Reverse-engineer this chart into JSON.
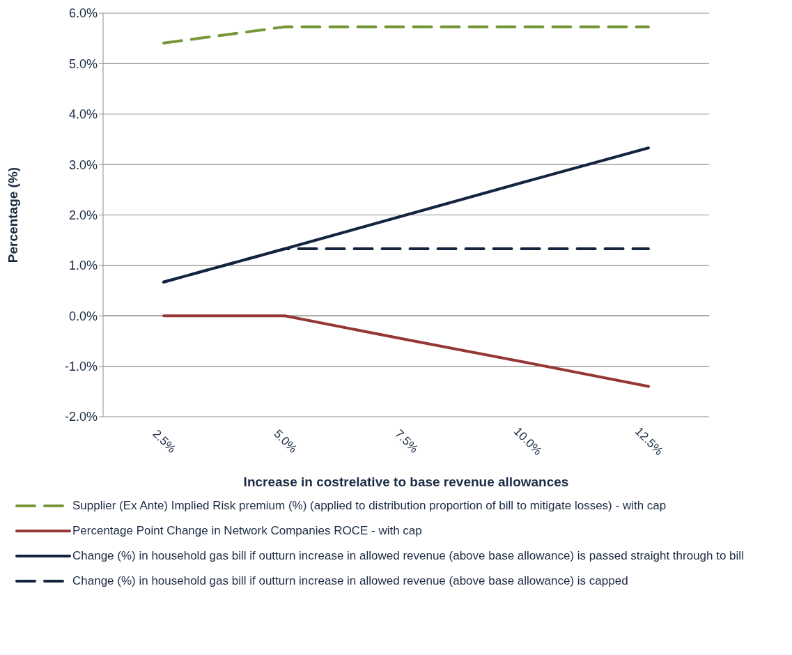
{
  "chart_data": {
    "type": "line",
    "xlabel": "Increase in costrelative to base revenue allowances",
    "ylabel": "Percentage (%)",
    "categories": [
      "2.5%",
      "5.0%",
      "7.5%",
      "10.0%",
      "12.5%"
    ],
    "ylim": [
      -2,
      6
    ],
    "yticks": [
      {
        "value": -2,
        "label": "-2.0%"
      },
      {
        "value": -1,
        "label": "-1.0%"
      },
      {
        "value": 0,
        "label": "0.0%"
      },
      {
        "value": 1,
        "label": "1.0%"
      },
      {
        "value": 2,
        "label": "2.0%"
      },
      {
        "value": 3,
        "label": "3.0%"
      },
      {
        "value": 4,
        "label": "4.0%"
      },
      {
        "value": 5,
        "label": "5.0%"
      },
      {
        "value": 6,
        "label": "6.0%"
      }
    ],
    "grid": "y",
    "legend": "bottom",
    "marker": "none",
    "series": [
      {
        "name": "Supplier (Ex Ante) Implied Risk premium (%) (applied to distribution proportion of bill to mitigate losses) - with cap",
        "color": "#77983a",
        "line_style": "dashed",
        "values": [
          5.41,
          5.73,
          5.73,
          5.73,
          5.73
        ]
      },
      {
        "name": "Percentage Point Change in Network Companies ROCE - with cap",
        "color": "#953734",
        "line_style": "solid",
        "values": [
          0,
          0,
          -0.47,
          -0.93,
          -1.4
        ]
      },
      {
        "name": "Change (%) in household gas bill if outturn increase in allowed revenue (above base allowance) is passed straight through to bill",
        "color": "#14243f",
        "line_style": "solid",
        "values": [
          0.67,
          1.33,
          2.0,
          2.67,
          3.33
        ]
      },
      {
        "name": "Change (%) in household gas bill if outturn increase in allowed revenue (above base allowance) is capped",
        "color": "#14243f",
        "line_style": "dashed",
        "values": [
          0.67,
          1.33,
          1.33,
          1.33,
          1.33
        ]
      }
    ]
  }
}
